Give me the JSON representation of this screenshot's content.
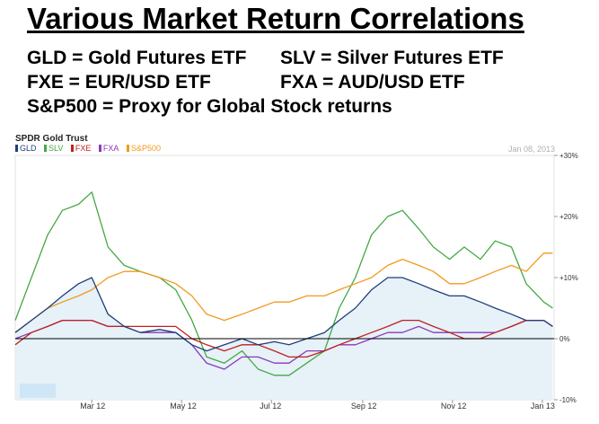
{
  "heading": {
    "title": "Various Market Return Correlations",
    "definitions": [
      "GLD = Gold Futures ETF",
      "SLV = Silver Futures ETF",
      "FXE = EUR/USD ETF",
      "FXA = AUD/USD ETF",
      "S&P500 = Proxy for Global Stock returns"
    ]
  },
  "chart_data": {
    "type": "line",
    "title": "SPDR Gold Trust",
    "date_label": "Jan 08, 2013",
    "x_ticks": [
      "Mar 12",
      "May 12",
      "Jul 12",
      "Sep 12",
      "Nov 12",
      "Jan 13"
    ],
    "y_ticks": [
      "+30%",
      "+20%",
      "+10%",
      "0%",
      "-10%"
    ],
    "ylim": [
      -10,
      30
    ],
    "grid": false,
    "legend_position": "top-left",
    "x": [
      "2012-01-09",
      "2012-01-20",
      "2012-01-31",
      "2012-02-10",
      "2012-02-21",
      "2012-03-01",
      "2012-03-12",
      "2012-03-23",
      "2012-04-03",
      "2012-04-16",
      "2012-04-27",
      "2012-05-08",
      "2012-05-18",
      "2012-05-30",
      "2012-06-11",
      "2012-06-22",
      "2012-07-03",
      "2012-07-13",
      "2012-07-25",
      "2012-08-06",
      "2012-08-16",
      "2012-08-27",
      "2012-09-07",
      "2012-09-18",
      "2012-09-28",
      "2012-10-09",
      "2012-10-19",
      "2012-10-30",
      "2012-11-09",
      "2012-11-20",
      "2012-11-30",
      "2012-12-11",
      "2012-12-21",
      "2013-01-02",
      "2013-01-08"
    ],
    "series": [
      {
        "name": "GLD",
        "color": "#1f3f7a",
        "values": [
          1,
          3,
          5,
          7,
          9,
          10,
          4,
          2,
          1,
          1.5,
          1,
          -1,
          -2,
          -1,
          0,
          -1,
          -0.5,
          -1,
          0,
          1,
          3,
          5,
          8,
          10,
          10,
          9,
          8,
          7,
          7,
          6,
          5,
          4,
          3,
          3,
          2
        ]
      },
      {
        "name": "SLV",
        "color": "#44a845",
        "values": [
          3,
          10,
          17,
          21,
          22,
          24,
          15,
          12,
          11,
          10,
          8,
          3,
          -3,
          -4,
          -2,
          -5,
          -6,
          -6,
          -4,
          -2,
          5,
          10,
          17,
          20,
          21,
          18,
          15,
          13,
          15,
          13,
          16,
          15,
          9,
          6,
          5
        ]
      },
      {
        "name": "FXE",
        "color": "#c0211f",
        "values": [
          -1,
          1,
          2,
          3,
          3,
          3,
          2,
          2,
          2,
          2,
          2,
          0,
          -1,
          -2,
          -1,
          -1,
          -2,
          -3,
          -3,
          -2,
          -1,
          0,
          1,
          2,
          3,
          3,
          2,
          1,
          0,
          0,
          1,
          2,
          3,
          3,
          2
        ]
      },
      {
        "name": "FXA",
        "color": "#8a3ab8",
        "values": [
          0,
          1,
          2,
          3,
          3,
          3,
          2,
          2,
          1,
          1,
          1,
          -1,
          -4,
          -5,
          -3,
          -3,
          -4,
          -4,
          -2,
          -2,
          -1,
          -1,
          0,
          1,
          1,
          2,
          1,
          1,
          1,
          1,
          1,
          2,
          3,
          3,
          2
        ]
      },
      {
        "name": "S&P500",
        "color": "#f29a1c",
        "values": [
          1,
          3,
          5,
          6,
          7,
          8,
          10,
          11,
          11,
          10,
          9,
          7,
          4,
          3,
          4,
          5,
          6,
          6,
          7,
          7,
          8,
          9,
          10,
          12,
          13,
          12,
          11,
          9,
          9,
          10,
          11,
          12,
          11,
          14,
          14
        ]
      }
    ]
  }
}
